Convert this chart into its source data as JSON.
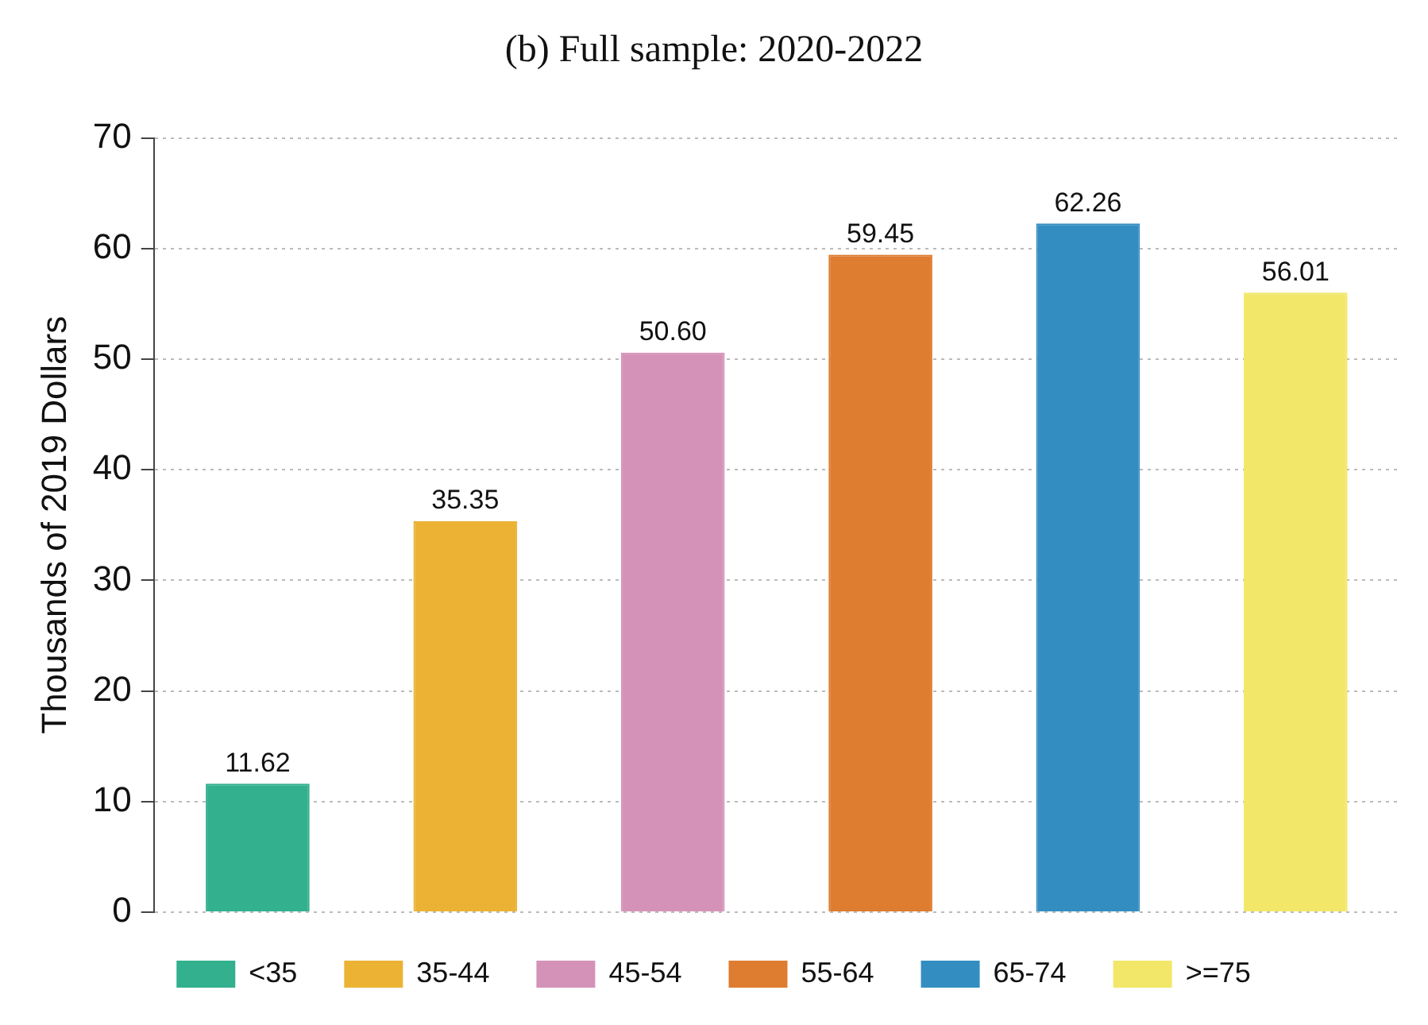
{
  "chart_data": {
    "type": "bar",
    "title": "(b) Full sample: 2020-2022",
    "ylabel": "Thousands of 2019 Dollars",
    "categories": [
      null,
      null,
      null,
      null,
      null,
      null
    ],
    "series": [
      {
        "name": "<35",
        "color": "#33b08d",
        "values": [
          11.62,
          null,
          null,
          null,
          null,
          null
        ],
        "value_labels": [
          "11.62",
          null,
          null,
          null,
          null,
          null
        ]
      },
      {
        "name": "35-44",
        "color": "#ebb234",
        "values": [
          null,
          35.35,
          null,
          null,
          null,
          null
        ],
        "value_labels": [
          null,
          "35.35",
          null,
          null,
          null,
          null
        ]
      },
      {
        "name": "45-54",
        "color": "#d592b8",
        "values": [
          null,
          null,
          50.6,
          null,
          null,
          null
        ],
        "value_labels": [
          null,
          null,
          "50.60",
          null,
          null,
          null
        ]
      },
      {
        "name": "55-64",
        "color": "#de7c30",
        "values": [
          null,
          null,
          null,
          59.45,
          null,
          null
        ],
        "value_labels": [
          null,
          null,
          null,
          "59.45",
          null,
          null
        ]
      },
      {
        "name": "65-74",
        "color": "#348dc1",
        "values": [
          null,
          null,
          null,
          null,
          62.26,
          null
        ],
        "value_labels": [
          null,
          null,
          null,
          null,
          "62.26",
          null
        ]
      },
      {
        "name": ">=75",
        "color": "#f2e769",
        "values": [
          null,
          null,
          null,
          null,
          null,
          56.01
        ],
        "value_labels": [
          null,
          null,
          null,
          null,
          null,
          "56.01"
        ]
      }
    ],
    "ylim": [
      0,
      70
    ],
    "yticks": [
      0,
      10,
      20,
      30,
      40,
      50,
      60,
      70
    ],
    "grid": "y",
    "legend": "bottom",
    "tick_labels": "y"
  }
}
